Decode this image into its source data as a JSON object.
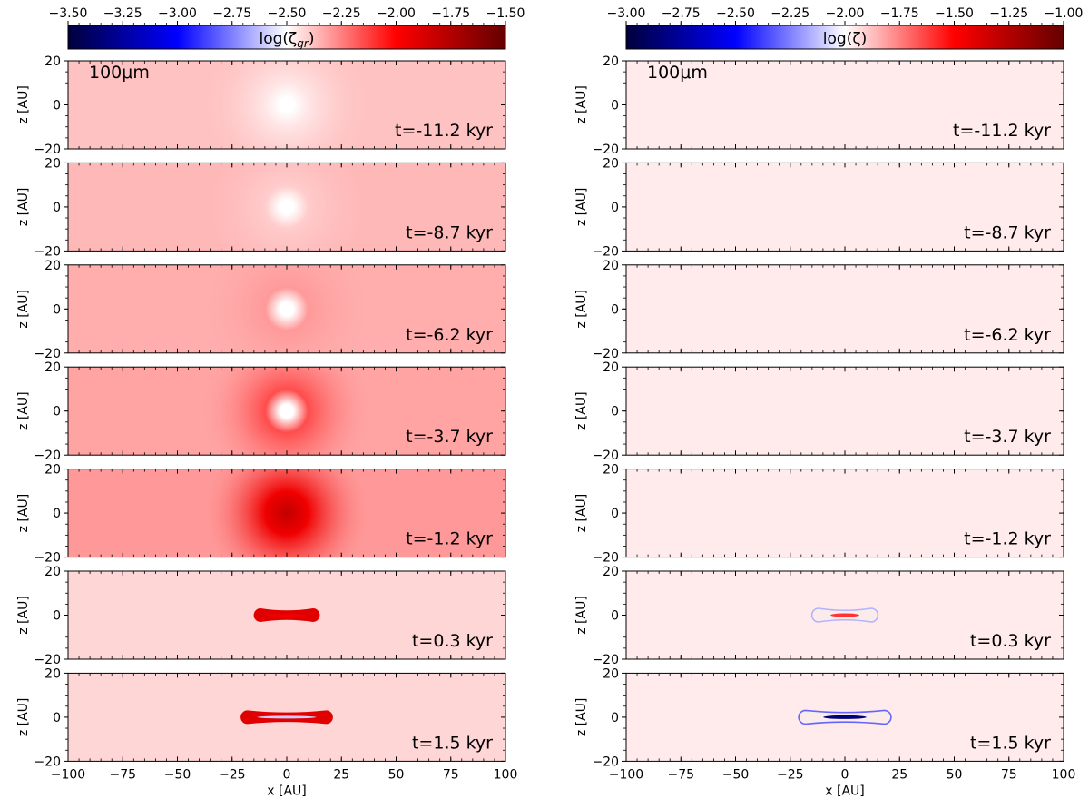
{
  "chart_data": {
    "type": "heatmap",
    "colormap": {
      "stops": [
        "#00003c",
        "#0000ff",
        "#ffffff",
        "#ff0000",
        "#640000"
      ]
    },
    "panels": [
      {
        "column": "left",
        "colorbar": {
          "label_base": "log(ζ",
          "label_sub": "gr",
          "label_end": ")",
          "range": [
            -3.5,
            -1.5
          ],
          "ticks": [
            "−3.50",
            "−3.25",
            "−3.00",
            "−2.75",
            "−2.50",
            "−2.25",
            "−2.00",
            "−1.75",
            "−1.50"
          ]
        },
        "grain_label": "100μm",
        "ylabel": "z [AU]",
        "xlabel": "x [AU]",
        "x_ticks": [
          "−100",
          "−75",
          "−50",
          "−25",
          "0",
          "25",
          "50",
          "75",
          "100"
        ],
        "y_ticks": [
          "20",
          "0",
          "−20"
        ],
        "xlim": [
          -100,
          100
        ],
        "ylim": [
          -20,
          20
        ],
        "snapshots": [
          {
            "time": "t=-11.2 kyr",
            "background": -2.38,
            "core": "hole",
            "core_value": -2.45
          },
          {
            "time": "t=-8.7 kyr",
            "background": -2.36,
            "core": "hole",
            "core_value": -2.4
          },
          {
            "time": "t=-6.2 kyr",
            "background": -2.34,
            "core": "hole",
            "core_value": -2.3
          },
          {
            "time": "t=-3.7 kyr",
            "background": -2.32,
            "core": "hole",
            "core_value": -2.15
          },
          {
            "time": "t=-1.2 kyr",
            "background": -2.3,
            "core": "peak",
            "core_value": -1.95
          },
          {
            "time": "t=0.3 kyr",
            "background": -2.42,
            "core": "disk",
            "disk_half_width": 12,
            "disk_value": -1.9,
            "disk_mid_value": -1.95
          },
          {
            "time": "t=1.5 kyr",
            "background": -2.42,
            "core": "disk",
            "disk_half_width": 18,
            "disk_value": -1.9,
            "disk_mid_value": -2.6
          }
        ]
      },
      {
        "column": "right",
        "colorbar": {
          "label_base": "log(ζ",
          "label_sub": "",
          "label_end": ")",
          "range": [
            -3.0,
            -1.0
          ],
          "ticks": [
            "−3.00",
            "−2.75",
            "−2.50",
            "−2.25",
            "−2.00",
            "−1.75",
            "−1.50",
            "−1.25",
            "−1.00"
          ]
        },
        "grain_label": "100μm",
        "ylabel": "z [AU]",
        "xlabel": "x [AU]",
        "x_ticks": [
          "−100",
          "−75",
          "−50",
          "−25",
          "0",
          "25",
          "50",
          "75",
          "100"
        ],
        "y_ticks": [
          "20",
          "0",
          "−20"
        ],
        "xlim": [
          -100,
          100
        ],
        "ylim": [
          -20,
          20
        ],
        "snapshots": [
          {
            "time": "t=-11.2 kyr",
            "background": -1.96,
            "core": "none"
          },
          {
            "time": "t=-8.7 kyr",
            "background": -1.96,
            "core": "none"
          },
          {
            "time": "t=-6.2 kyr",
            "background": -1.96,
            "core": "none"
          },
          {
            "time": "t=-3.7 kyr",
            "background": -1.96,
            "core": "none"
          },
          {
            "time": "t=-1.2 kyr",
            "background": -1.96,
            "core": "none"
          },
          {
            "time": "t=0.3 kyr",
            "background": -1.96,
            "core": "ring",
            "disk_half_width": 12,
            "disk_value": -2.15,
            "disk_mid_value": -1.6
          },
          {
            "time": "t=1.5 kyr",
            "background": -1.96,
            "core": "ring",
            "disk_half_width": 18,
            "disk_value": -2.3,
            "disk_mid_value": -2.85
          }
        ]
      }
    ]
  }
}
